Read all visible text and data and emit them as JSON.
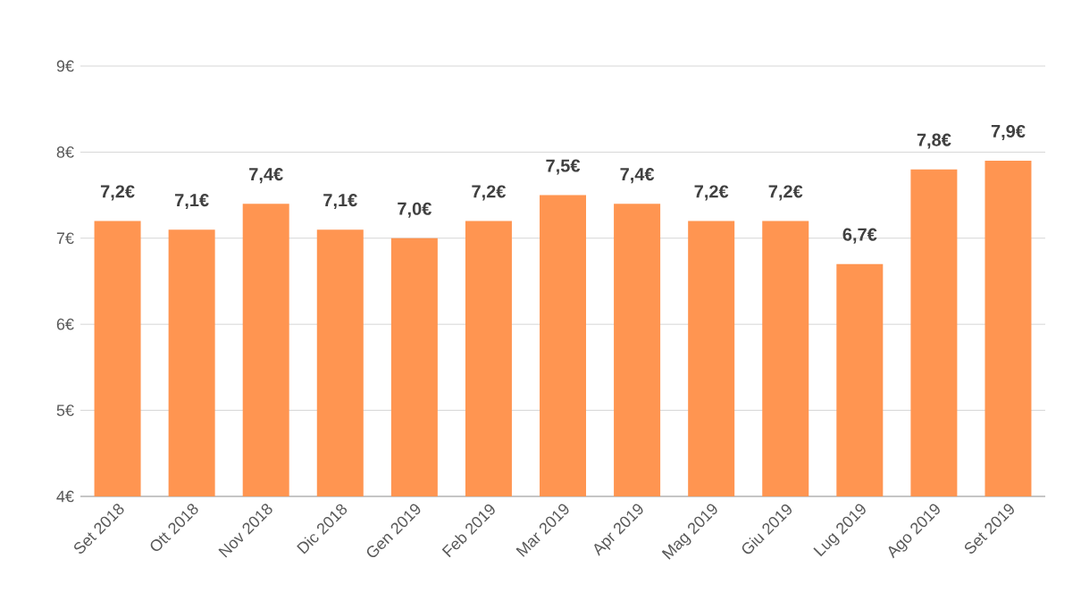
{
  "chart_data": {
    "type": "bar",
    "categories": [
      "Set 2018",
      "Ott 2018",
      "Nov 2018",
      "Dic 2018",
      "Gen 2019",
      "Feb 2019",
      "Mar 2019",
      "Apr 2019",
      "Mag 2019",
      "Giu 2019",
      "Lug 2019",
      "Ago 2019",
      "Set 2019"
    ],
    "values": [
      7.2,
      7.1,
      7.4,
      7.1,
      7.0,
      7.2,
      7.5,
      7.4,
      7.2,
      7.2,
      6.7,
      7.8,
      7.9
    ],
    "value_labels": [
      "7,2€",
      "7,1€",
      "7,4€",
      "7,1€",
      "7,0€",
      "7,2€",
      "7,5€",
      "7,4€",
      "7,2€",
      "7,2€",
      "6,7€",
      "7,8€",
      "7,9€"
    ],
    "color": "#ff9551",
    "ylim": [
      4,
      9
    ],
    "yticks": [
      {
        "value": 4,
        "label": "4€"
      },
      {
        "value": 5,
        "label": "5€"
      },
      {
        "value": 6,
        "label": "6€"
      },
      {
        "value": 7,
        "label": "7€"
      },
      {
        "value": 8,
        "label": "8€"
      },
      {
        "value": 9,
        "label": "9€"
      }
    ],
    "grid": "y"
  }
}
